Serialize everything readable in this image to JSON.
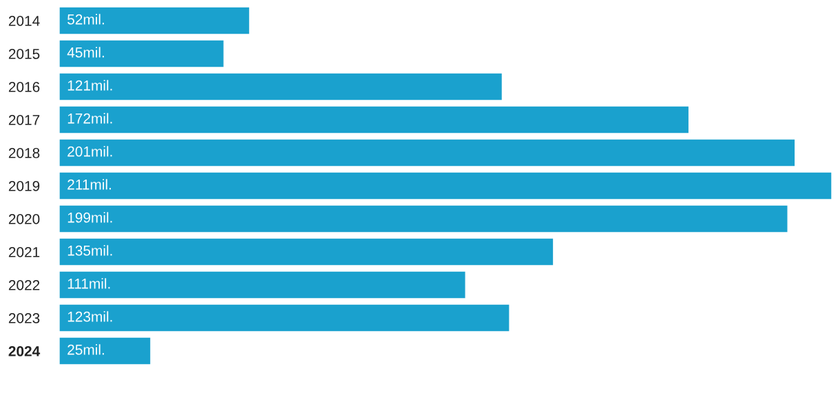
{
  "chart_data": {
    "type": "bar",
    "orientation": "horizontal",
    "categories": [
      "2014",
      "2015",
      "2016",
      "2017",
      "2018",
      "2019",
      "2020",
      "2021",
      "2022",
      "2023",
      "2024"
    ],
    "values": [
      52,
      45,
      121,
      172,
      201,
      211,
      199,
      135,
      111,
      123,
      25
    ],
    "value_labels": [
      "52mil.",
      "45mil.",
      "121mil.",
      "172mil.",
      "201mil.",
      "211mil.",
      "199mil.",
      "135mil.",
      "111mil.",
      "123mil.",
      "25mil."
    ],
    "color": "#1aa1ce",
    "grid": false,
    "legend": false
  }
}
